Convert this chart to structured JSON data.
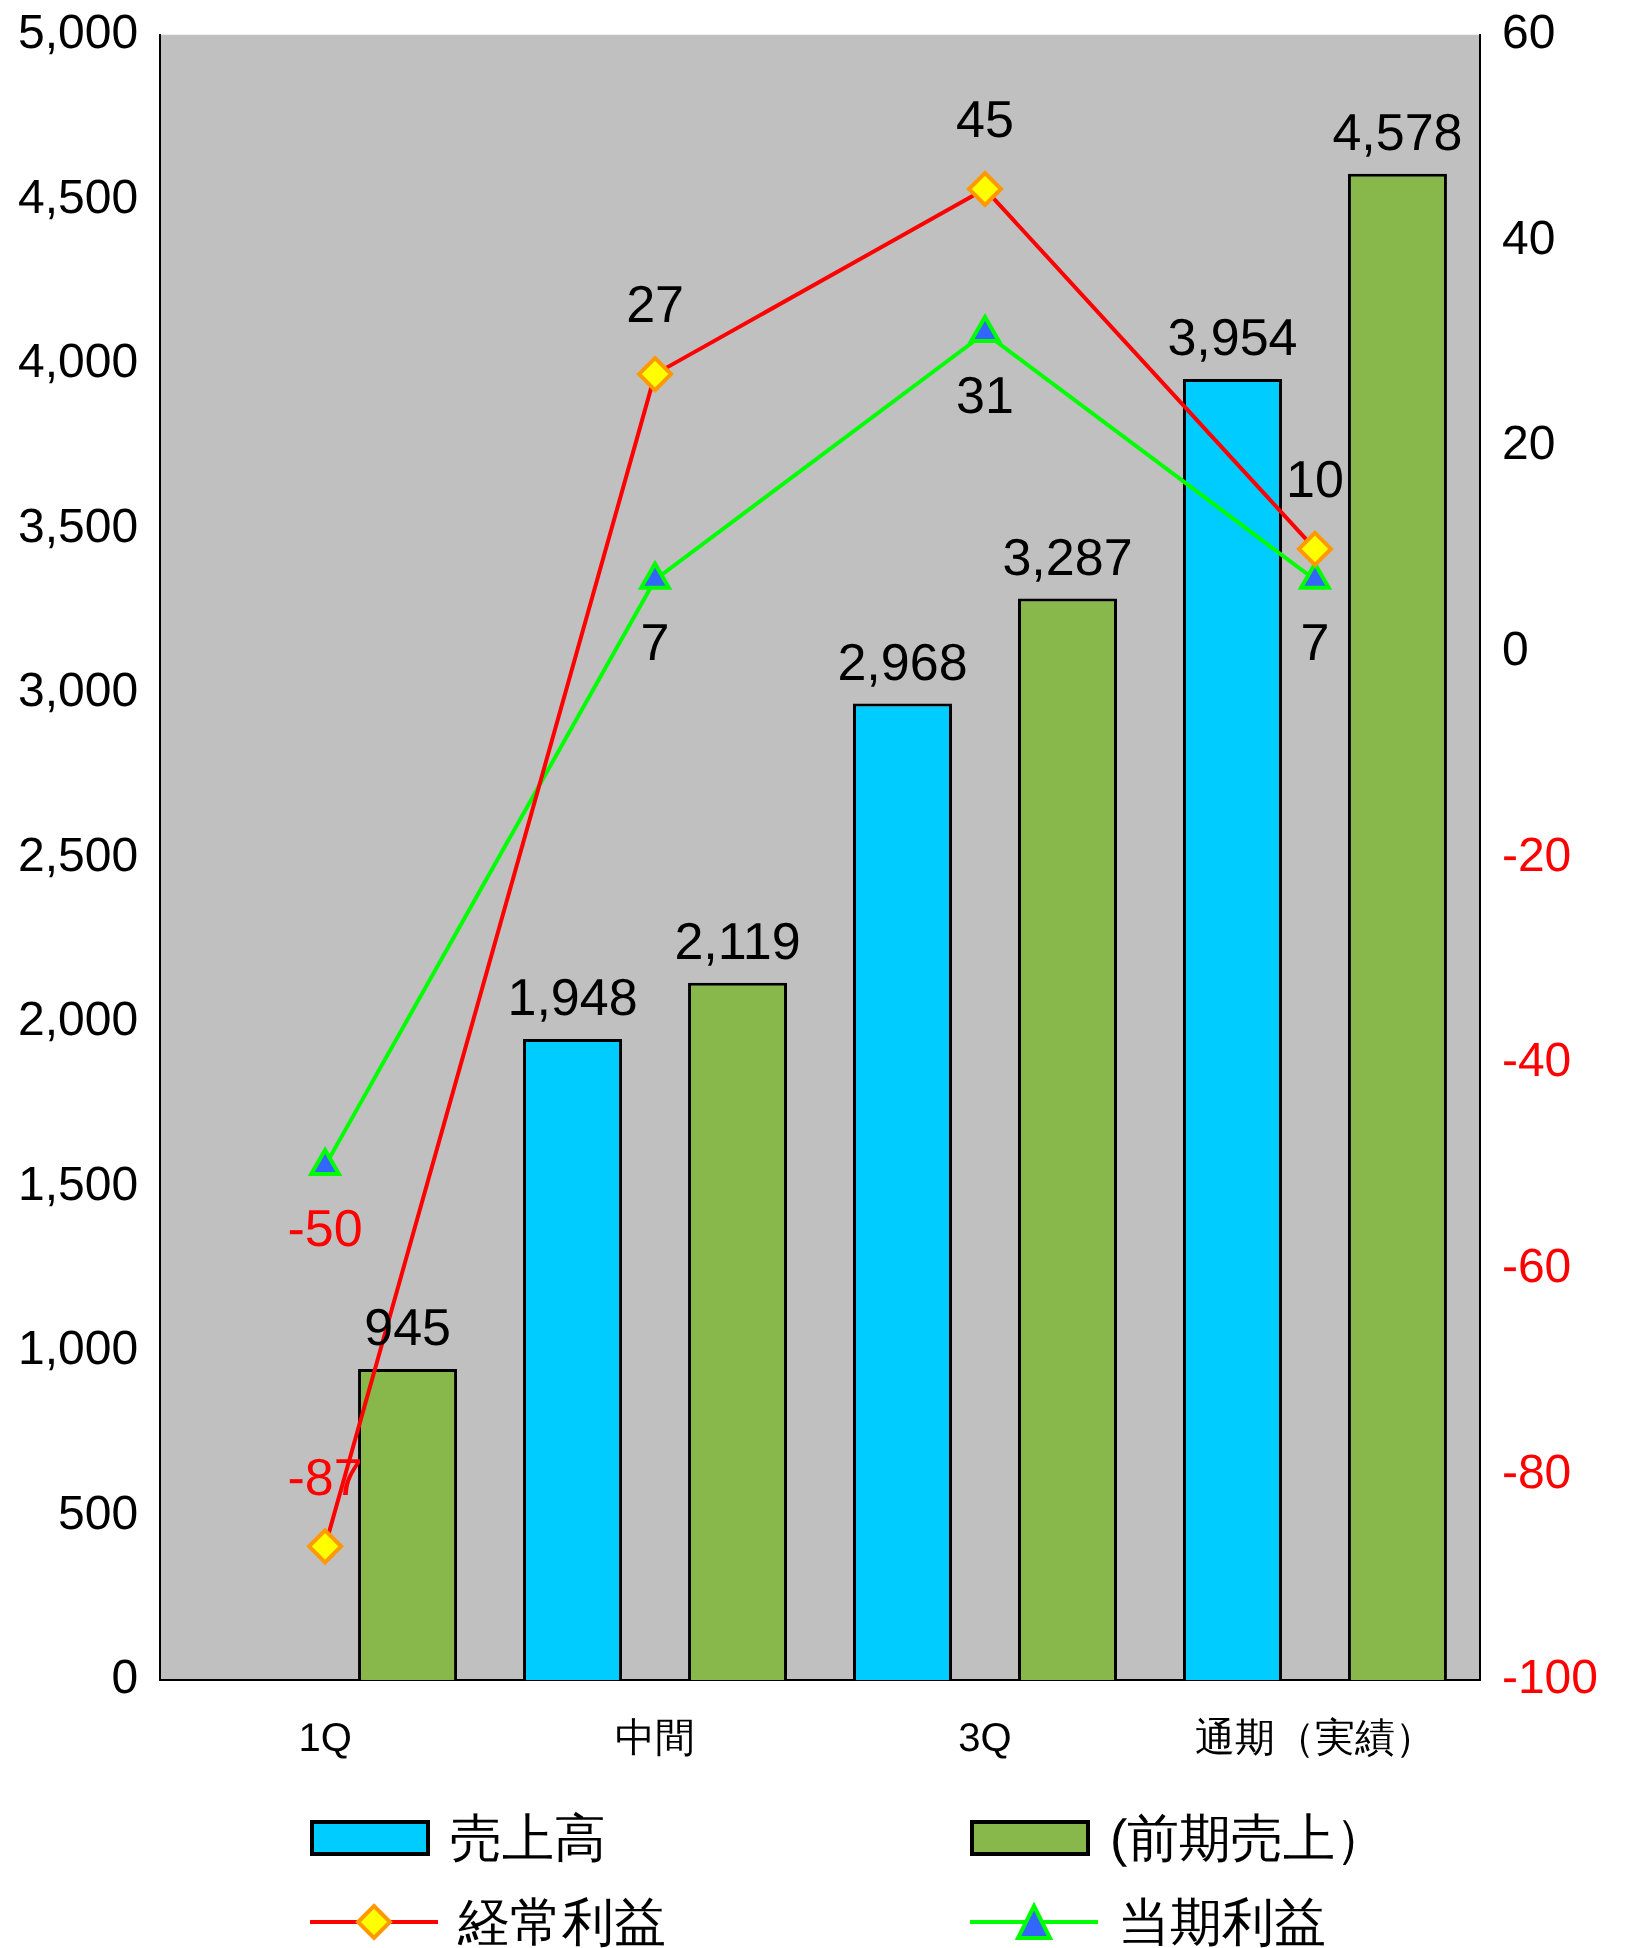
{
  "chart_data": {
    "type": "bar",
    "categories": [
      "1Q",
      "中間",
      "3Q",
      "通期（実績）"
    ],
    "series": [
      {
        "name": "売上高",
        "color": "#00ccff",
        "values": [
          null,
          1948,
          2968,
          3954
        ],
        "value_labels": [
          null,
          "1,948",
          "2,968",
          "3,954"
        ]
      },
      {
        "name": "(前期売上）",
        "color": "#88b84c",
        "values": [
          945,
          2119,
          3287,
          4578
        ],
        "value_labels": [
          "945",
          "2,119",
          "3,287",
          "4,578"
        ]
      },
      {
        "name": "経常利益",
        "type": "line",
        "axis": "y2",
        "color": "#ff0000",
        "marker": "diamond",
        "values": [
          -87,
          27,
          45,
          10
        ],
        "value_labels": [
          "-87",
          "27",
          "45",
          "10"
        ]
      },
      {
        "name": "当期利益",
        "type": "line",
        "axis": "y2",
        "color": "#00ff00",
        "marker": "triangle",
        "values": [
          -50,
          7,
          31,
          7
        ],
        "value_labels": [
          "-50",
          "7",
          "31",
          "7"
        ]
      }
    ],
    "ylim": [
      0,
      5000
    ],
    "yticks": [
      0,
      500,
      {
        "value": 1000,
        "label": "1,000"
      },
      {
        "value": 1500,
        "label": "1,500"
      },
      {
        "value": 2000,
        "label": "2,000"
      },
      {
        "value": 2500,
        "label": "2,500"
      },
      {
        "value": 3000,
        "label": "3,000"
      },
      {
        "value": 3500,
        "label": "3,500"
      },
      {
        "value": 4000,
        "label": "4,000"
      },
      {
        "value": 4500,
        "label": "4,500"
      },
      {
        "value": 5000,
        "label": "5,000"
      }
    ],
    "y2lim": [
      -100,
      60
    ],
    "y2ticks": [
      -100,
      -80,
      -60,
      -40,
      -20,
      0,
      20,
      40,
      60
    ],
    "grid": false,
    "legend": "bottom"
  }
}
